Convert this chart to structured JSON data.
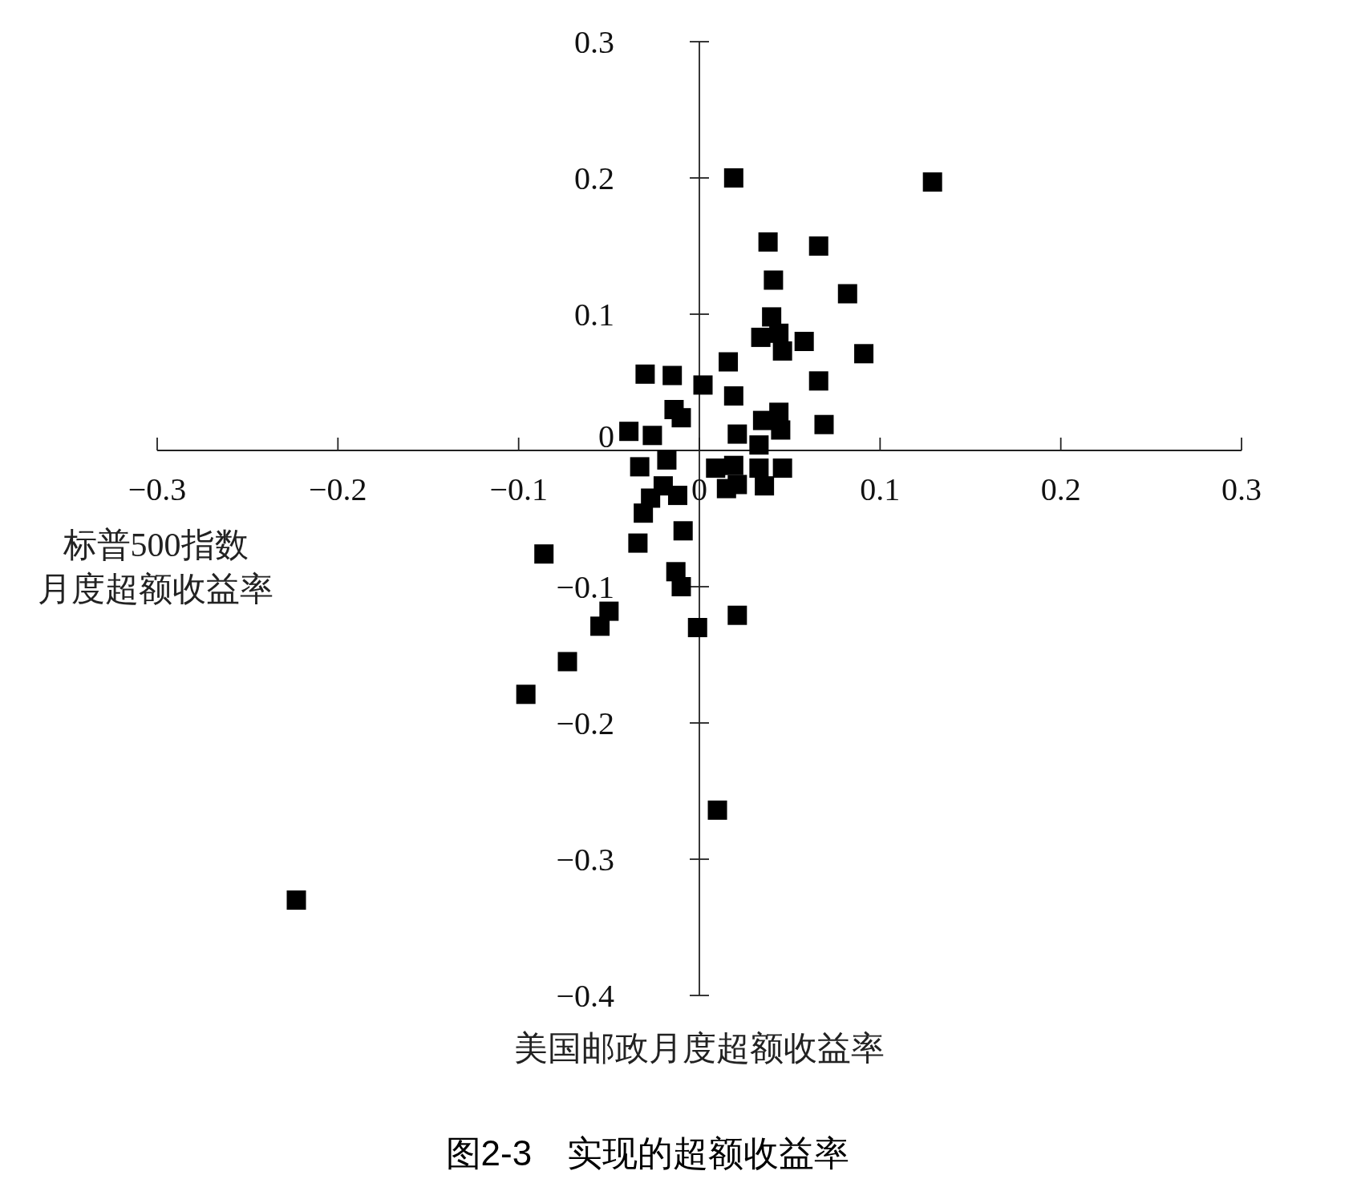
{
  "chart_data": {
    "type": "scatter",
    "title": "图2-3　实现的超额收益率",
    "xlabel": "美国邮政月度超额收益率",
    "ylabel": "标普500指数月度超额收益率",
    "x": [
      0.019,
      0.129,
      0.038,
      0.066,
      0.041,
      0.082,
      0.04,
      0.044,
      0.034,
      0.058,
      0.046,
      0.091,
      0.016,
      -0.03,
      -0.015,
      0.002,
      0.066,
      0.019,
      -0.014,
      -0.01,
      0.035,
      0.044,
      0.045,
      0.069,
      -0.039,
      -0.026,
      0.021,
      0.033,
      -0.018,
      -0.033,
      0.009,
      0.019,
      0.033,
      0.046,
      -0.02,
      -0.027,
      -0.012,
      -0.031,
      0.015,
      0.021,
      0.036,
      -0.009,
      -0.034,
      -0.013,
      -0.01,
      -0.086,
      -0.05,
      -0.055,
      -0.073,
      -0.096,
      -0.001,
      0.021,
      0.01,
      -0.223
    ],
    "values": [
      0.2,
      0.197,
      0.153,
      0.15,
      0.125,
      0.115,
      0.098,
      0.086,
      0.083,
      0.08,
      0.073,
      0.071,
      0.065,
      0.056,
      0.055,
      0.048,
      0.051,
      0.04,
      0.03,
      0.024,
      0.022,
      0.028,
      0.015,
      0.019,
      0.014,
      0.011,
      0.012,
      0.004,
      -0.007,
      -0.012,
      -0.013,
      -0.011,
      -0.013,
      -0.013,
      -0.026,
      -0.035,
      -0.033,
      -0.046,
      -0.028,
      -0.025,
      -0.026,
      -0.059,
      -0.068,
      -0.089,
      -0.1,
      -0.076,
      -0.118,
      -0.129,
      -0.155,
      -0.179,
      -0.13,
      -0.121,
      -0.264,
      -0.33
    ],
    "color": "#000000",
    "marker": "square",
    "xlim": [
      -0.3,
      0.3
    ],
    "ylim": [
      -0.4,
      0.3
    ],
    "xticks": [
      -0.3,
      -0.2,
      -0.1,
      0,
      0.1,
      0.2,
      0.3
    ],
    "yticks": [
      -0.4,
      -0.3,
      -0.2,
      -0.1,
      0,
      0.1,
      0.2,
      0.3
    ]
  }
}
